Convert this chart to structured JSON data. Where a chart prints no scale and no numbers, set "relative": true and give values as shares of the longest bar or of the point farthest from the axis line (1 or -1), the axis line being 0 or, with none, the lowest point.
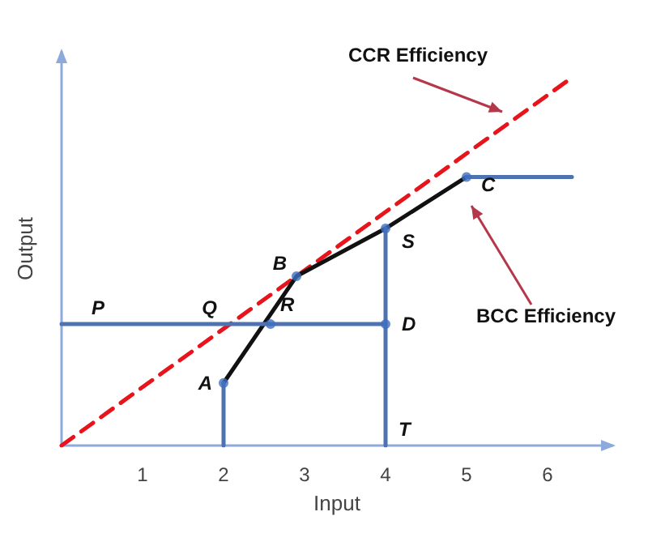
{
  "chart_data": {
    "type": "line",
    "xlabel": "Input",
    "ylabel": "Output",
    "relative": true,
    "tick_labels": "x",
    "xlim": [
      0,
      6.8
    ],
    "xticks": [
      1,
      2,
      3,
      4,
      5,
      6
    ],
    "marker": "none",
    "series": [
      {
        "color": "#e8141c",
        "line_style": "dashed",
        "x": [
          0,
          6.3
        ],
        "values": [
          0,
          1
        ]
      },
      {
        "color": "#111111",
        "line_style": "solid",
        "x": [
          2,
          2.9,
          4,
          5
        ],
        "values": [
          0.17,
          0.46,
          0.59,
          0.73
        ]
      },
      {
        "color": "#4f72b0",
        "line_style": "solid",
        "x": [
          0,
          4
        ],
        "values": [
          0.33,
          0.33
        ]
      },
      {
        "color": "#4f72b0",
        "line_style": "solid",
        "x": [
          4,
          4
        ],
        "values": [
          0,
          0.59
        ]
      },
      {
        "color": "#4f72b0",
        "line_style": "solid",
        "x": [
          2,
          2
        ],
        "values": [
          0,
          0.17
        ]
      },
      {
        "color": "#4f72b0",
        "line_style": "solid",
        "x": [
          5,
          6.3
        ],
        "values": [
          0.73,
          0.73
        ]
      },
      {
        "type": "scatter",
        "color": "#3f6fc0",
        "marker": "circle",
        "x": [
          2,
          2.9,
          2.58,
          4,
          4,
          5
        ],
        "values": [
          0.17,
          0.46,
          0.33,
          0.33,
          0.59,
          0.73
        ]
      }
    ],
    "annotations": [
      "CCR Efficiency",
      "BCC Efficiency",
      {
        "text": "P",
        "x": 0.45,
        "y": 0.33
      },
      {
        "text": "Q",
        "x": 2.1,
        "y": 0.33
      },
      {
        "text": "R",
        "x": 2.58,
        "y": 0.33
      },
      {
        "text": "B",
        "x": 2.9,
        "y": 0.46
      },
      {
        "text": "A",
        "x": 2,
        "y": 0.17
      },
      {
        "text": "D",
        "x": 4,
        "y": 0.33
      },
      {
        "text": "S",
        "x": 4,
        "y": 0.59
      },
      {
        "text": "C",
        "x": 5,
        "y": 0.73
      },
      {
        "text": "T",
        "x": 4,
        "y": 0
      }
    ]
  }
}
